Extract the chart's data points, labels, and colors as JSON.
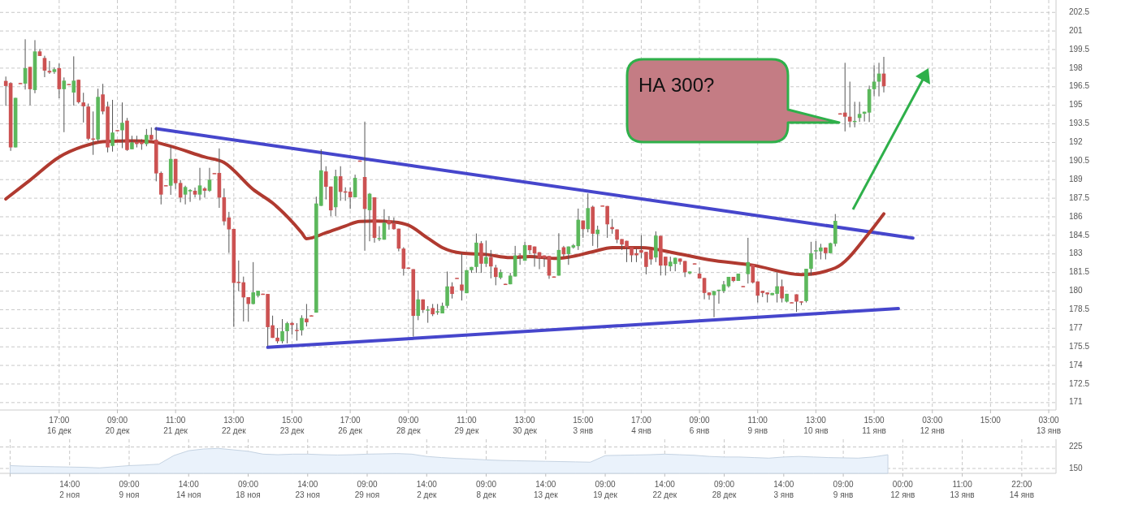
{
  "chart_data": [
    {
      "type": "candlestick",
      "categories": [
        null,
        null,
        null,
        null,
        null,
        null,
        null,
        null,
        null,
        null,
        null,
        "17:00\n16 дек",
        null,
        null,
        null,
        null,
        null,
        null,
        null,
        null,
        null,
        null,
        null,
        "09:00\n20 дек",
        null,
        null,
        null,
        null,
        null,
        null,
        null,
        null,
        null,
        null,
        null,
        "11:00\n21 дек",
        null,
        null,
        null,
        null,
        null,
        null,
        null,
        null,
        null,
        null,
        null,
        "13:00\n22 дек",
        null,
        null,
        null,
        null,
        null,
        null,
        null,
        null,
        null,
        null,
        null,
        "15:00\n23 дек",
        null,
        null,
        null,
        null,
        null,
        null,
        null,
        null,
        null,
        null,
        null,
        "17:00\n26 дек",
        null,
        null,
        null,
        null,
        null,
        null,
        null,
        null,
        null,
        null,
        null,
        "09:00\n28 дек",
        null,
        null,
        null,
        null,
        null,
        null,
        null,
        null,
        null,
        null,
        null,
        "11:00\n29 дек",
        null,
        null,
        null,
        null,
        null,
        null,
        null,
        null,
        null,
        null,
        null,
        "13:00\n30 дек",
        null,
        null,
        null,
        null,
        null,
        null,
        null,
        null,
        null,
        null,
        null,
        "15:00\n3 янв",
        null,
        null,
        null,
        null,
        null,
        null,
        null,
        null,
        null,
        null,
        null,
        "17:00\n4 янв",
        null,
        null,
        null,
        null,
        null,
        null,
        null,
        null,
        null,
        null,
        null,
        "09:00\n6 янв",
        null,
        null,
        null,
        null,
        null,
        null,
        null,
        null,
        null,
        null,
        null,
        "11:00\n9 янв",
        null,
        null,
        null,
        null,
        null,
        null,
        null,
        null,
        null,
        null,
        null,
        "13:00\n10 янв",
        null,
        null,
        null,
        null,
        null,
        null,
        null,
        null,
        null,
        null,
        null,
        "15:00\n11 янв",
        null,
        null,
        null,
        null,
        null,
        null,
        null,
        null,
        null,
        null,
        null,
        "03:00\n12 янв",
        null,
        null,
        null,
        null,
        null,
        null,
        null,
        null,
        null,
        null,
        null,
        "15:00",
        null,
        null,
        null,
        null,
        null,
        null,
        null,
        null,
        null,
        null,
        null,
        "03:00\n13 янв",
        null
      ],
      "ohlc": [
        [
          196.97,
          197.32,
          194.96,
          196.56
        ],
        [
          196.8,
          196.86,
          191.32,
          191.6
        ],
        [
          191.6,
          195.6,
          191.6,
          195.6
        ],
        [
          196.8,
          196.8,
          196.75,
          196.75
        ],
        [
          196.75,
          200.33,
          196.27,
          198.0
        ],
        [
          198.1,
          198.1,
          195.0,
          196.3
        ],
        [
          196.23,
          200.26,
          195.97,
          199.35
        ],
        [
          199.35,
          199.54,
          198.98,
          198.98
        ],
        [
          198.82,
          199.0,
          197.27,
          197.8
        ],
        [
          197.78,
          198.58,
          197.54,
          197.65
        ],
        [
          197.69,
          198.06,
          197.54,
          197.91
        ],
        [
          198.0,
          198.37,
          195.57,
          196.3
        ],
        [
          196.3,
          197.25,
          192.83,
          196.99
        ],
        [
          196.72,
          196.72,
          196.7,
          196.7
        ],
        [
          196.03,
          198.95,
          194.98,
          196.99
        ],
        [
          197.06,
          197.06,
          195.14,
          195.25
        ],
        [
          195.23,
          196.01,
          193.61,
          194.92
        ],
        [
          194.9,
          195.14,
          192.17,
          192.3
        ],
        [
          192.32,
          194.5,
          191.0,
          192.28
        ],
        [
          192.24,
          196.34,
          192.06,
          195.68
        ],
        [
          195.88,
          196.73,
          194.27,
          194.5
        ],
        [
          194.9,
          195.29,
          191.2,
          191.6
        ],
        [
          191.72,
          195.44,
          191.26,
          192.8
        ],
        [
          193.0,
          193.0,
          192.96,
          192.96
        ],
        [
          192.98,
          195.23,
          191.54,
          193.59
        ],
        [
          193.76,
          193.98,
          191.32,
          191.39
        ],
        [
          191.45,
          192.54,
          191.45,
          192.0
        ],
        [
          192.04,
          192.54,
          191.6,
          191.87
        ],
        [
          192.04,
          192.26,
          191.41,
          191.87
        ],
        [
          191.87,
          193.09,
          191.69,
          192.61
        ],
        [
          192.61,
          193.22,
          192.2,
          192.24
        ],
        [
          192.22,
          193.22,
          188.86,
          189.5
        ],
        [
          189.54,
          189.65,
          187.0,
          187.79
        ],
        [
          188.55,
          188.55,
          188.51,
          188.51
        ],
        [
          188.51,
          191.69,
          187.77,
          190.67
        ],
        [
          190.67,
          190.67,
          188.25,
          188.71
        ],
        [
          188.73,
          188.97,
          187.16,
          187.55
        ],
        [
          187.79,
          188.51,
          187.0,
          188.4
        ],
        [
          188.05,
          188.23,
          187.2,
          188.16
        ],
        [
          188.1,
          188.36,
          187.57,
          187.79
        ],
        [
          187.79,
          189.95,
          187.33,
          188.53
        ],
        [
          188.29,
          188.4,
          187.55,
          188.1
        ],
        [
          188.1,
          189.95,
          188.01,
          188.99
        ],
        [
          189.53,
          189.53,
          189.49,
          189.49
        ],
        [
          189.54,
          191.52,
          186.72,
          187.55
        ],
        [
          187.57,
          188.29,
          185.31,
          185.63
        ],
        [
          185.94,
          186.4,
          183.08,
          184.98
        ],
        [
          185.02,
          185.02,
          177.13,
          180.66
        ],
        [
          180.75,
          182.47,
          179.99,
          180.71
        ],
        [
          180.71,
          181.17,
          177.55,
          179.49
        ],
        [
          179.51,
          179.51,
          177.53,
          178.96
        ],
        [
          178.96,
          182.34,
          178.92,
          179.9
        ],
        [
          179.62,
          180.03,
          179.49,
          180.03
        ],
        [
          179.79,
          179.79,
          179.75,
          179.75
        ],
        [
          179.77,
          179.77,
          175.56,
          177.09
        ],
        [
          177.24,
          178.02,
          176.22,
          176.22
        ],
        [
          176.24,
          177.02,
          175.78,
          175.95
        ],
        [
          175.95,
          177.74,
          175.78,
          176.76
        ],
        [
          176.76,
          177.52,
          175.78,
          177.41
        ],
        [
          177.43,
          177.52,
          176.48,
          177.26
        ],
        [
          176.87,
          177.41,
          176.0,
          176.83
        ],
        [
          176.83,
          178.05,
          176.41,
          177.83
        ],
        [
          177.78,
          178.96,
          177.15,
          177.48
        ],
        [
          178.04,
          178.04,
          178.0,
          178.0
        ],
        [
          178.26,
          187.62,
          178.26,
          187.07
        ],
        [
          186.88,
          191.45,
          186.88,
          189.75
        ],
        [
          189.66,
          190.08,
          187.4,
          188.42
        ],
        [
          188.44,
          188.44,
          186.05,
          186.52
        ],
        [
          186.77,
          189.8,
          186.05,
          189.27
        ],
        [
          189.27,
          190.08,
          187.29,
          188.01
        ],
        [
          188.05,
          188.38,
          187.29,
          188.01
        ],
        [
          188.03,
          188.38,
          186.63,
          187.57
        ],
        [
          187.57,
          189.4,
          187.57,
          189.14
        ],
        [
          190.54,
          190.54,
          190.5,
          190.5
        ],
        [
          189.21,
          193.68,
          183.26,
          186.63
        ],
        [
          186.53,
          187.92,
          184.02,
          187.86
        ],
        [
          187.57,
          187.57,
          183.91,
          184.3
        ],
        [
          184.24,
          185.24,
          184.04,
          184.28
        ],
        [
          184.15,
          186.61,
          184.15,
          185.52
        ],
        [
          185.72,
          186.05,
          184.96,
          185.39
        ],
        [
          185.5,
          185.94,
          184.96,
          185.0
        ],
        [
          185.04,
          185.04,
          183.21,
          183.43
        ],
        [
          183.43,
          183.54,
          181.25,
          181.8
        ],
        [
          181.9,
          181.9,
          181.86,
          181.86
        ],
        [
          181.77,
          181.77,
          176.32,
          178.0
        ],
        [
          178.0,
          180.05,
          177.65,
          179.33
        ],
        [
          179.33,
          179.33,
          178.24,
          178.48
        ],
        [
          178.48,
          178.79,
          177.44,
          178.52
        ],
        [
          178.63,
          178.96,
          177.98,
          178.13
        ],
        [
          178.33,
          178.96,
          178.09,
          178.37
        ],
        [
          178.2,
          179.07,
          178.2,
          178.81
        ],
        [
          178.81,
          181.58,
          178.63,
          180.38
        ],
        [
          180.38,
          180.71,
          179.4,
          179.77
        ],
        [
          181.07,
          181.07,
          181.03,
          181.03
        ],
        [
          180.53,
          183.04,
          179.24,
          180.05
        ],
        [
          179.83,
          181.69,
          179.83,
          181.69
        ],
        [
          181.69,
          181.95,
          181.47,
          181.95
        ],
        [
          181.95,
          184.65,
          181.47,
          183.91
        ],
        [
          183.87,
          184.04,
          181.47,
          182.21
        ],
        [
          182.21,
          184.08,
          181.95,
          182.75
        ],
        [
          182.75,
          183.32,
          181.03,
          181.99
        ],
        [
          181.9,
          182.12,
          180.47,
          181.14
        ],
        [
          181.08,
          181.75,
          180.95,
          181.53
        ],
        [
          180.59,
          180.59,
          180.55,
          180.55
        ],
        [
          180.55,
          181.47,
          180.55,
          181.25
        ],
        [
          181.18,
          183.65,
          181.18,
          182.88
        ],
        [
          182.9,
          183.06,
          182.12,
          182.85
        ],
        [
          182.45,
          183.97,
          182.45,
          183.71
        ],
        [
          183.71,
          183.71,
          183.0,
          183.3
        ],
        [
          183.6,
          183.6,
          181.97,
          183.04
        ],
        [
          183.14,
          183.14,
          181.77,
          182.67
        ],
        [
          182.88,
          182.88,
          181.95,
          182.67
        ],
        [
          182.84,
          182.84,
          180.99,
          181.25
        ],
        [
          181.18,
          181.18,
          181.14,
          181.14
        ],
        [
          181.25,
          184.67,
          181.25,
          183.32
        ],
        [
          183.54,
          183.65,
          182.77,
          182.97
        ],
        [
          182.99,
          183.6,
          182.12,
          183.6
        ],
        [
          183.52,
          183.8,
          183.43,
          183.7
        ],
        [
          183.63,
          186.66,
          183.32,
          185.76
        ],
        [
          185.7,
          185.7,
          184.3,
          185.0
        ],
        [
          185.0,
          187.88,
          184.74,
          186.7
        ],
        [
          186.81,
          186.9,
          183.65,
          184.63
        ],
        [
          184.6,
          185.28,
          183.48,
          184.96
        ],
        [
          186.91,
          186.91,
          186.87,
          186.87
        ],
        [
          186.87,
          186.87,
          184.3,
          185.39
        ],
        [
          185.17,
          185.82,
          184.63,
          185.0
        ],
        [
          184.98,
          184.98,
          183.87,
          184.15
        ],
        [
          184.2,
          184.2,
          183.32,
          183.76
        ],
        [
          184.06,
          184.06,
          182.34,
          183.54
        ],
        [
          183.54,
          183.54,
          182.34,
          182.89
        ],
        [
          183.06,
          183.43,
          182.34,
          182.89
        ],
        [
          183.32,
          184.52,
          182.67,
          183.1
        ],
        [
          183.17,
          183.17,
          181.35,
          181.95
        ],
        [
          183.32,
          183.32,
          182.13,
          182.56
        ],
        [
          182.71,
          184.82,
          182.34,
          184.48
        ],
        [
          184.46,
          184.46,
          181.26,
          182.06
        ],
        [
          182.78,
          182.78,
          181.26,
          182.06
        ],
        [
          182.0,
          182.78,
          181.6,
          182.37
        ],
        [
          182.19,
          182.69,
          181.6,
          182.69
        ],
        [
          182.63,
          182.63,
          182.13,
          182.37
        ],
        [
          182.43,
          182.43,
          181.13,
          181.52
        ],
        [
          181.43,
          181.58,
          181.35,
          181.58
        ],
        [
          182.24,
          182.24,
          182.2,
          182.2
        ],
        [
          181.41,
          181.91,
          181.02,
          181.02
        ],
        [
          181.06,
          181.06,
          179.34,
          179.85
        ],
        [
          179.89,
          179.89,
          179.3,
          179.67
        ],
        [
          179.67,
          180.0,
          177.89,
          180.0
        ],
        [
          180.06,
          180.11,
          178.98,
          180.11
        ],
        [
          180.0,
          180.82,
          179.84,
          180.54
        ],
        [
          180.39,
          181.15,
          180.28,
          181.15
        ],
        [
          181.15,
          181.15,
          180.72,
          180.82
        ],
        [
          180.82,
          181.41,
          180.82,
          181.41
        ],
        [
          180.41,
          180.41,
          180.37,
          180.37
        ],
        [
          181.37,
          184.3,
          180.61,
          182.34
        ],
        [
          182.13,
          182.13,
          180.61,
          180.69
        ],
        [
          180.78,
          180.78,
          179.08,
          179.63
        ],
        [
          180.02,
          180.02,
          179.52,
          179.85
        ],
        [
          179.89,
          179.89,
          179.08,
          179.74
        ],
        [
          179.67,
          179.85,
          179.67,
          179.85
        ],
        [
          179.78,
          181.52,
          179.08,
          180.39
        ],
        [
          180.39,
          180.93,
          179.08,
          179.41
        ],
        [
          179.15,
          179.78,
          179.08,
          179.78
        ],
        [
          179.1,
          179.1,
          179.06,
          179.06
        ],
        [
          179.74,
          179.74,
          178.32,
          179.15
        ],
        [
          179.17,
          179.17,
          178.87,
          179.13
        ],
        [
          179.19,
          181.8,
          179.08,
          181.8
        ],
        [
          181.8,
          183.98,
          181.26,
          183.06
        ],
        [
          183.26,
          184.04,
          182.56,
          183.3
        ],
        [
          183.21,
          183.82,
          182.56,
          183.52
        ],
        [
          183.52,
          183.52,
          182.56,
          183.06
        ],
        [
          183.06,
          183.91,
          183.06,
          183.87
        ],
        [
          183.82,
          186.22,
          183.61,
          185.67
        ],
        [
          194.35,
          194.35,
          194.3,
          194.3
        ],
        [
          194.41,
          198.43,
          192.89,
          194.08
        ],
        [
          194.08,
          196.91,
          193.22,
          193.69
        ],
        [
          193.71,
          195.28,
          193.22,
          193.74
        ],
        [
          193.98,
          195.28,
          193.65,
          194.3
        ],
        [
          194.32,
          194.48,
          193.69,
          194.48
        ],
        [
          194.41,
          196.59,
          193.65,
          196.3
        ],
        [
          196.3,
          198.22,
          195.72,
          196.91
        ],
        [
          196.91,
          198.43,
          195.72,
          197.56
        ],
        [
          197.56,
          198.91,
          196.04,
          196.54
        ],
        null,
        null,
        null,
        null,
        null,
        null,
        null,
        null,
        null,
        null,
        null,
        null,
        null,
        null,
        null,
        null,
        null,
        null,
        null,
        null,
        null,
        null,
        null,
        null,
        null,
        null,
        null,
        null,
        null,
        null,
        null,
        null,
        null,
        null,
        null
      ],
      "colors": [
        "#cc5252",
        "#cc5252",
        "#5cb85c",
        "#cc5252",
        "#5cb85c",
        "#cc5252",
        "#5cb85c",
        "#cc5252",
        "#cc5252",
        "#cc5252",
        "#5cb85c",
        "#cc5252",
        "#5cb85c",
        "#cc5252",
        "#5cb85c",
        "#cc5252",
        "#cc5252",
        "#cc5252",
        "#cc5252",
        "#5cb85c",
        "#cc5252",
        "#cc5252",
        "#5cb85c",
        "#cc5252",
        "#5cb85c",
        "#cc5252",
        "#5cb85c",
        "#cc5252",
        "#cc5252",
        "#5cb85c",
        "#cc5252",
        "#cc5252",
        "#cc5252",
        "#cc5252",
        "#5cb85c",
        "#cc5252",
        "#cc5252",
        "#5cb85c",
        "#5cb85c",
        "#cc5252",
        "#5cb85c",
        "#cc5252",
        "#5cb85c",
        "#cc5252",
        "#cc5252",
        "#cc5252",
        "#cc5252",
        "#cc5252",
        "#cc5252",
        "#cc5252",
        "#cc5252",
        "#5cb85c",
        "#5cb85c",
        "#cc5252",
        "#cc5252",
        "#cc5252",
        "#cc5252",
        "#5cb85c",
        "#5cb85c",
        "#cc5252",
        "#cc5252",
        "#5cb85c",
        "#cc5252",
        "#cc5252",
        "#5cb85c",
        "#5cb85c",
        "#cc5252",
        "#cc5252",
        "#5cb85c",
        "#cc5252",
        "#cc5252",
        "#cc5252",
        "#5cb85c",
        "#cc5252",
        "#cc5252",
        "#5cb85c",
        "#cc5252",
        "#5cb85c",
        "#5cb85c",
        "#cc5252",
        "#cc5252",
        "#cc5252",
        "#cc5252",
        "#cc5252",
        "#cc5252",
        "#5cb85c",
        "#cc5252",
        "#5cb85c",
        "#cc5252",
        "#5cb85c",
        "#5cb85c",
        "#5cb85c",
        "#cc5252",
        "#cc5252",
        "#cc5252",
        "#5cb85c",
        "#5cb85c",
        "#5cb85c",
        "#cc5252",
        "#5cb85c",
        "#cc5252",
        "#cc5252",
        "#5cb85c",
        "#cc5252",
        "#5cb85c",
        "#5cb85c",
        "#cc5252",
        "#5cb85c",
        "#cc5252",
        "#cc5252",
        "#cc5252",
        "#cc5252",
        "#cc5252",
        "#cc5252",
        "#5cb85c",
        "#cc5252",
        "#5cb85c",
        "#5cb85c",
        "#5cb85c",
        "#cc5252",
        "#5cb85c",
        "#cc5252",
        "#5cb85c",
        "#cc5252",
        "#cc5252",
        "#cc5252",
        "#cc5252",
        "#cc5252",
        "#cc5252",
        "#cc5252",
        "#cc5252",
        "#cc5252",
        "#cc5252",
        "#cc5252",
        "#5cb85c",
        "#cc5252",
        "#cc5252",
        "#5cb85c",
        "#5cb85c",
        "#cc5252",
        "#cc5252",
        "#5cb85c",
        "#cc5252",
        "#cc5252",
        "#cc5252",
        "#cc5252",
        "#5cb85c",
        "#5cb85c",
        "#5cb85c",
        "#5cb85c",
        "#cc5252",
        "#5cb85c",
        "#cc5252",
        "#5cb85c",
        "#cc5252",
        "#cc5252",
        "#cc5252",
        "#cc5252",
        "#5cb85c",
        "#5cb85c",
        "#cc5252",
        "#5cb85c",
        "#cc5252",
        "#cc5252",
        "#cc5252",
        "#5cb85c",
        "#5cb85c",
        "#5cb85c",
        "#5cb85c",
        "#cc5252",
        "#5cb85c",
        "#5cb85c",
        "#cc5252",
        "#cc5252",
        "#cc5252",
        "#5cb85c",
        "#5cb85c",
        "#5cb85c",
        "#5cb85c",
        "#5cb85c",
        "#5cb85c",
        "#cc5252",
        null,
        null,
        null,
        null,
        null,
        null,
        null,
        null,
        null,
        null,
        null,
        null,
        null,
        null,
        null,
        null,
        null,
        null,
        null,
        null,
        null,
        null,
        null,
        null,
        null,
        null,
        null,
        null,
        null,
        null,
        null,
        null,
        null,
        null,
        null
      ],
      "series": [
        {
          "type": "line",
          "color": "#b03a30",
          "values": [
            187.44,
            null,
            null,
            null,
            null,
            188.96,
            null,
            null,
            null,
            null,
            null,
            190.82,
            null,
            null,
            null,
            null,
            191.69,
            null,
            null,
            null,
            192.07,
            null,
            null,
            null,
            null,
            null,
            192.13,
            null,
            null,
            null,
            192.07,
            null,
            null,
            null,
            191.69,
            null,
            null,
            null,
            null,
            null,
            null,
            190.82,
            null,
            null,
            null,
            190.38,
            null,
            null,
            null,
            null,
            null,
            188.2,
            null,
            null,
            null,
            187.11,
            null,
            null,
            null,
            null,
            null,
            184.71,
            184.23,
            null,
            null,
            null,
            184.71,
            null,
            null,
            null,
            185.26,
            null,
            null,
            185.62,
            null,
            null,
            185.65,
            null,
            null,
            null,
            185.58,
            null,
            null,
            185.32,
            null,
            null,
            null,
            184.27,
            null,
            null,
            183.51,
            null,
            null,
            null,
            183.07,
            null,
            null,
            null,
            null,
            182.96,
            null,
            null,
            null,
            null,
            182.7,
            null,
            null,
            null,
            182.79,
            null,
            null,
            null,
            null,
            182.64,
            null,
            null,
            182.74,
            null,
            null,
            null,
            null,
            183.18,
            null,
            null,
            null,
            183.51,
            null,
            null,
            null,
            null,
            null,
            183.51,
            null,
            null,
            null,
            null,
            null,
            null,
            183.07,
            null,
            null,
            null,
            null,
            null,
            null,
            182.53,
            null,
            null,
            null,
            null,
            null,
            null,
            null,
            null,
            182.09,
            null,
            null,
            null,
            null,
            null,
            null,
            null,
            null,
            null,
            181.33,
            null,
            null,
            null,
            null,
            null,
            null,
            181.87,
            null,
            null,
            null,
            null,
            null,
            null,
            184.71,
            null,
            null,
            186.24,
            null,
            null,
            null,
            null,
            null,
            null,
            null,
            null,
            null,
            null,
            null,
            null,
            null,
            null,
            null,
            null,
            null,
            null,
            null,
            null,
            null,
            null,
            null,
            null,
            null,
            null,
            null,
            null,
            null,
            null,
            null,
            null,
            null,
            null,
            null
          ]
        },
        {
          "type": "line",
          "color": "#4646cc",
          "values": [
            null,
            null,
            null,
            null,
            null,
            null,
            null,
            null,
            null,
            null,
            null,
            null,
            null,
            null,
            null,
            null,
            null,
            null,
            null,
            null,
            null,
            null,
            null,
            null,
            null,
            null,
            null,
            null,
            null,
            null,
            null,
            193.11,
            null,
            null,
            null,
            null,
            null,
            null,
            null,
            null,
            null,
            null,
            null,
            null,
            null,
            null,
            null,
            null,
            null,
            null,
            null,
            null,
            null,
            null,
            null,
            null,
            null,
            null,
            null,
            null,
            null,
            null,
            null,
            null,
            null,
            null,
            null,
            null,
            null,
            null,
            null,
            null,
            null,
            null,
            null,
            null,
            null,
            null,
            null,
            null,
            null,
            null,
            null,
            null,
            null,
            null,
            null,
            null,
            null,
            null,
            null,
            null,
            null,
            null,
            null,
            null,
            null,
            null,
            null,
            null,
            null,
            null,
            null,
            null,
            null,
            null,
            null,
            null,
            null,
            null,
            null,
            null,
            null,
            null,
            null,
            null,
            null,
            null,
            null,
            null,
            null,
            null,
            null,
            null,
            null,
            null,
            null,
            null,
            null,
            null,
            null,
            null,
            null,
            null,
            null,
            null,
            null,
            null,
            null,
            null,
            null,
            null,
            null,
            null,
            null,
            null,
            null,
            null,
            null,
            null,
            null,
            null,
            null,
            null,
            null,
            null,
            null,
            null,
            null,
            null,
            null,
            null,
            null,
            null,
            null,
            null,
            null,
            null,
            null,
            null,
            null,
            null,
            null,
            null,
            null,
            null,
            null,
            null,
            null,
            null,
            null,
            null,
            null,
            null,
            null,
            null,
            null,
            184.28,
            null,
            null,
            null,
            null,
            null,
            null,
            null,
            null,
            null,
            null,
            null,
            null,
            null,
            null,
            null,
            null,
            null,
            null,
            null,
            null,
            null,
            null,
            null,
            null,
            null,
            null,
            null,
            null,
            null
          ]
        },
        {
          "type": "line",
          "color": "#4646cc",
          "values": [
            null,
            null,
            null,
            null,
            null,
            null,
            null,
            null,
            null,
            null,
            null,
            null,
            null,
            null,
            null,
            null,
            null,
            null,
            null,
            null,
            null,
            null,
            null,
            null,
            null,
            null,
            null,
            null,
            null,
            null,
            null,
            null,
            null,
            null,
            null,
            null,
            null,
            null,
            null,
            null,
            null,
            null,
            null,
            null,
            null,
            null,
            null,
            null,
            null,
            null,
            null,
            null,
            null,
            null,
            175.46,
            null,
            null,
            null,
            null,
            null,
            null,
            null,
            null,
            null,
            null,
            null,
            null,
            null,
            null,
            null,
            null,
            null,
            null,
            null,
            null,
            null,
            null,
            null,
            null,
            null,
            null,
            null,
            null,
            null,
            null,
            null,
            null,
            null,
            null,
            null,
            null,
            null,
            null,
            null,
            null,
            null,
            null,
            null,
            null,
            null,
            null,
            null,
            null,
            null,
            null,
            null,
            null,
            null,
            null,
            null,
            null,
            null,
            null,
            null,
            null,
            null,
            null,
            null,
            null,
            null,
            null,
            null,
            null,
            null,
            null,
            null,
            null,
            null,
            null,
            null,
            null,
            null,
            null,
            null,
            null,
            null,
            null,
            null,
            null,
            null,
            null,
            null,
            null,
            null,
            null,
            null,
            null,
            null,
            null,
            null,
            null,
            null,
            null,
            null,
            null,
            null,
            null,
            null,
            null,
            null,
            null,
            null,
            null,
            null,
            null,
            null,
            null,
            null,
            null,
            null,
            null,
            null,
            null,
            null,
            null,
            null,
            null,
            null,
            null,
            null,
            null,
            null,
            null,
            null,
            178.59,
            null,
            null,
            null,
            null,
            null,
            null,
            null,
            null,
            null,
            null,
            null,
            null,
            null,
            null,
            null,
            null,
            null,
            null,
            null,
            null,
            null,
            null,
            null,
            null,
            null,
            null,
            null,
            null,
            null,
            null,
            null,
            null
          ]
        }
      ],
      "ylim": [
        170.4,
        203.5
      ],
      "yticks": [
        171,
        172.5,
        174,
        175.5,
        177,
        178.5,
        180,
        181.5,
        183,
        184.5,
        186,
        187.5,
        189,
        190.5,
        192,
        193.5,
        195,
        196.5,
        198,
        199.5,
        201,
        202.5
      ],
      "grid": true,
      "annotations": [
        "НА 300?"
      ]
    },
    {
      "type": "area",
      "color": "#eaf2fb",
      "categories": [
        null,
        null,
        null,
        null,
        "14:00\n2 ноя",
        null,
        null,
        null,
        "09:00\n9 ноя",
        null,
        null,
        null,
        "14:00\n14 ноя",
        null,
        null,
        null,
        "09:00\n18 ноя",
        null,
        null,
        null,
        "14:00\n23 ноя",
        null,
        null,
        null,
        "09:00\n29 ноя",
        null,
        null,
        null,
        "14:00\n2 дек",
        null,
        null,
        null,
        "09:00\n8 дек",
        null,
        null,
        null,
        "14:00\n13 дек",
        null,
        null,
        null,
        "09:00\n19 дек",
        null,
        null,
        null,
        "14:00\n22 дек",
        null,
        null,
        null,
        "09:00\n28 дек",
        null,
        null,
        null,
        "14:00\n3 янв",
        null,
        null,
        null,
        "09:00\n9 янв",
        null,
        null,
        null,
        "00:00\n12 янв",
        null,
        null,
        null,
        "11:00\n13 янв",
        null,
        null,
        null,
        "22:00\n14 янв",
        null,
        null
      ],
      "values": [
        160,
        158,
        157,
        156,
        155,
        154,
        152,
        156,
        160,
        162,
        165,
        195,
        212,
        218,
        220,
        215,
        210,
        200,
        198,
        200,
        200,
        198,
        197,
        198,
        200,
        201,
        202,
        200,
        192,
        188,
        185,
        183,
        180,
        178,
        177,
        176,
        175,
        174,
        173,
        172,
        195,
        196,
        197,
        198,
        200,
        198,
        196,
        192,
        190,
        190,
        188,
        186,
        190,
        192,
        190,
        188,
        187,
        186,
        190,
        198,
        null,
        null,
        null,
        null,
        null,
        null,
        null,
        null,
        null,
        null,
        null
      ],
      "ylim": [
        133,
        252
      ],
      "yticks": [
        150,
        225
      ],
      "grid": true
    }
  ]
}
